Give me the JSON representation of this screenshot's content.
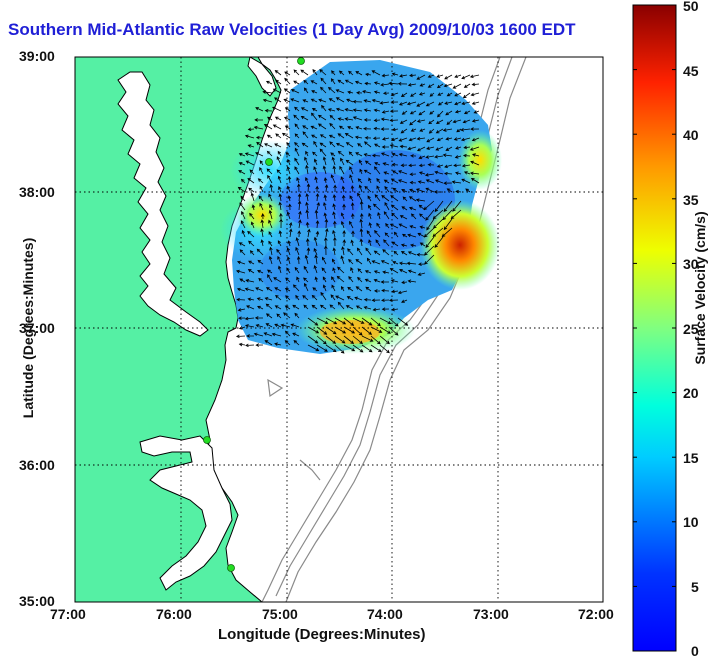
{
  "title": "Southern Mid-Atlantic Raw Velocities (1 Day Avg) 2009/10/03 1600 EDT",
  "colors": {
    "land": "#55f0a4",
    "ocean": "#ffffff",
    "title": "#1f1fd6",
    "coastline": "#000000",
    "bathymetry": "#8a8a8a",
    "station": "#22dd22"
  },
  "axes": {
    "xlabel": "Longitude (Degrees:Minutes)",
    "ylabel": "Latitude (Degrees:Minutes)",
    "xticks": [
      "77:00",
      "76:00",
      "75:00",
      "74:00",
      "73:00",
      "72:00"
    ],
    "yticks": [
      "39:00",
      "38:00",
      "37:00",
      "36:00",
      "35:00"
    ]
  },
  "colorbar": {
    "label": "Surface Velocity (cm/s)",
    "min": 0,
    "max": 50,
    "ticks": [
      "50",
      "45",
      "40",
      "35",
      "30",
      "25",
      "20",
      "15",
      "10",
      "5",
      "0"
    ],
    "colormap": "jet"
  },
  "stations": [
    "station-1",
    "station-2",
    "station-3",
    "station-4"
  ]
}
